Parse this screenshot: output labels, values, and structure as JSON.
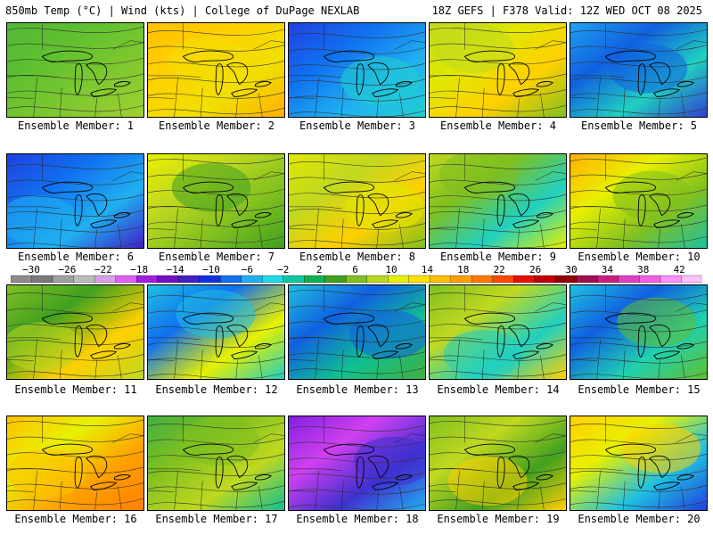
{
  "header": {
    "title_left": "850mb Temp (°C) | Wind (kts) | College of DuPage NEXLAB",
    "title_right": "18Z GEFS | F378 Valid: 12Z WED OCT 08 2025"
  },
  "colorbar": {
    "labels": [
      "−30",
      "−26",
      "−22",
      "−18",
      "−14",
      "−10",
      "−6",
      "−2",
      "2",
      "6",
      "10",
      "14",
      "18",
      "22",
      "26",
      "30",
      "34",
      "38",
      "42"
    ],
    "colors": [
      "#8c8c8c",
      "#7a7a7a",
      "#a0a0a0",
      "#bcbcbc",
      "#d8a0e8",
      "#e060f0",
      "#a020e0",
      "#7010c0",
      "#4020c8",
      "#1030e0",
      "#1070f0",
      "#20b0f0",
      "#20d8e8",
      "#10c8a0",
      "#10b050",
      "#40a020",
      "#80c020",
      "#b8d820",
      "#e8f000",
      "#ffe000",
      "#ffc000",
      "#ffa000",
      "#ff7800",
      "#ff4800",
      "#e81000",
      "#c00000",
      "#900000",
      "#a01050",
      "#c82080",
      "#e040c0",
      "#f060e0",
      "#ff90ff",
      "#ffc0ff"
    ]
  },
  "members": [
    {
      "label": "Ensemble Member: 1",
      "colors": [
        "#40b040",
        "#60c030",
        "#80c830",
        "#a0d030"
      ]
    },
    {
      "label": "Ensemble Member: 2",
      "colors": [
        "#ffc000",
        "#ffd000",
        "#f0e000",
        "#ffb000"
      ]
    },
    {
      "label": "Ensemble Member: 3",
      "colors": [
        "#2040e0",
        "#1070f0",
        "#20b0f0",
        "#20d0d0"
      ]
    },
    {
      "label": "Ensemble Member: 4",
      "colors": [
        "#c0d820",
        "#e0e800",
        "#ffd000",
        "#80c020"
      ]
    },
    {
      "label": "Ensemble Member: 5",
      "colors": [
        "#20a0f0",
        "#1060e0",
        "#20d0c0",
        "#3040d0"
      ]
    },
    {
      "label": "Ensemble Member: 6",
      "colors": [
        "#2040e0",
        "#1070f0",
        "#20b0f0",
        "#4020c8"
      ]
    },
    {
      "label": "Ensemble Member: 7",
      "colors": [
        "#e8f000",
        "#c0d820",
        "#80c020",
        "#40a020"
      ]
    },
    {
      "label": "Ensemble Member: 8",
      "colors": [
        "#e0e800",
        "#c0d820",
        "#ffd000",
        "#80c020"
      ]
    },
    {
      "label": "Ensemble Member: 9",
      "colors": [
        "#c0d820",
        "#80c020",
        "#20d0c0",
        "#e8f000"
      ]
    },
    {
      "label": "Ensemble Member: 10",
      "colors": [
        "#ffb000",
        "#e8f000",
        "#80c020",
        "#20c0a0"
      ]
    },
    {
      "label": "Ensemble Member: 11",
      "colors": [
        "#80c020",
        "#40a020",
        "#ffd000",
        "#c0d820"
      ]
    },
    {
      "label": "Ensemble Member: 12",
      "colors": [
        "#20c0e0",
        "#1070f0",
        "#e8f000",
        "#20d0c0"
      ]
    },
    {
      "label": "Ensemble Member: 13",
      "colors": [
        "#20c0e0",
        "#1060e0",
        "#10c090",
        "#40b040"
      ]
    },
    {
      "label": "Ensemble Member: 14",
      "colors": [
        "#80c020",
        "#c0d820",
        "#20d0c0",
        "#ffd000"
      ]
    },
    {
      "label": "Ensemble Member: 15",
      "colors": [
        "#20c0e0",
        "#1060e0",
        "#20d0b0",
        "#60c030"
      ]
    },
    {
      "label": "Ensemble Member: 16",
      "colors": [
        "#ffc000",
        "#e8f000",
        "#ffa000",
        "#ff8000"
      ]
    },
    {
      "label": "Ensemble Member: 17",
      "colors": [
        "#40b040",
        "#80c020",
        "#c0d820",
        "#10c090"
      ]
    },
    {
      "label": "Ensemble Member: 18",
      "colors": [
        "#8020e0",
        "#d040f0",
        "#4030d0",
        "#20b0f0"
      ]
    },
    {
      "label": "Ensemble Member: 19",
      "colors": [
        "#80c020",
        "#c0d820",
        "#40a020",
        "#ffd000"
      ]
    },
    {
      "label": "Ensemble Member: 20",
      "colors": [
        "#ffd000",
        "#e8f000",
        "#20c0e0",
        "#2040e0"
      ]
    }
  ]
}
